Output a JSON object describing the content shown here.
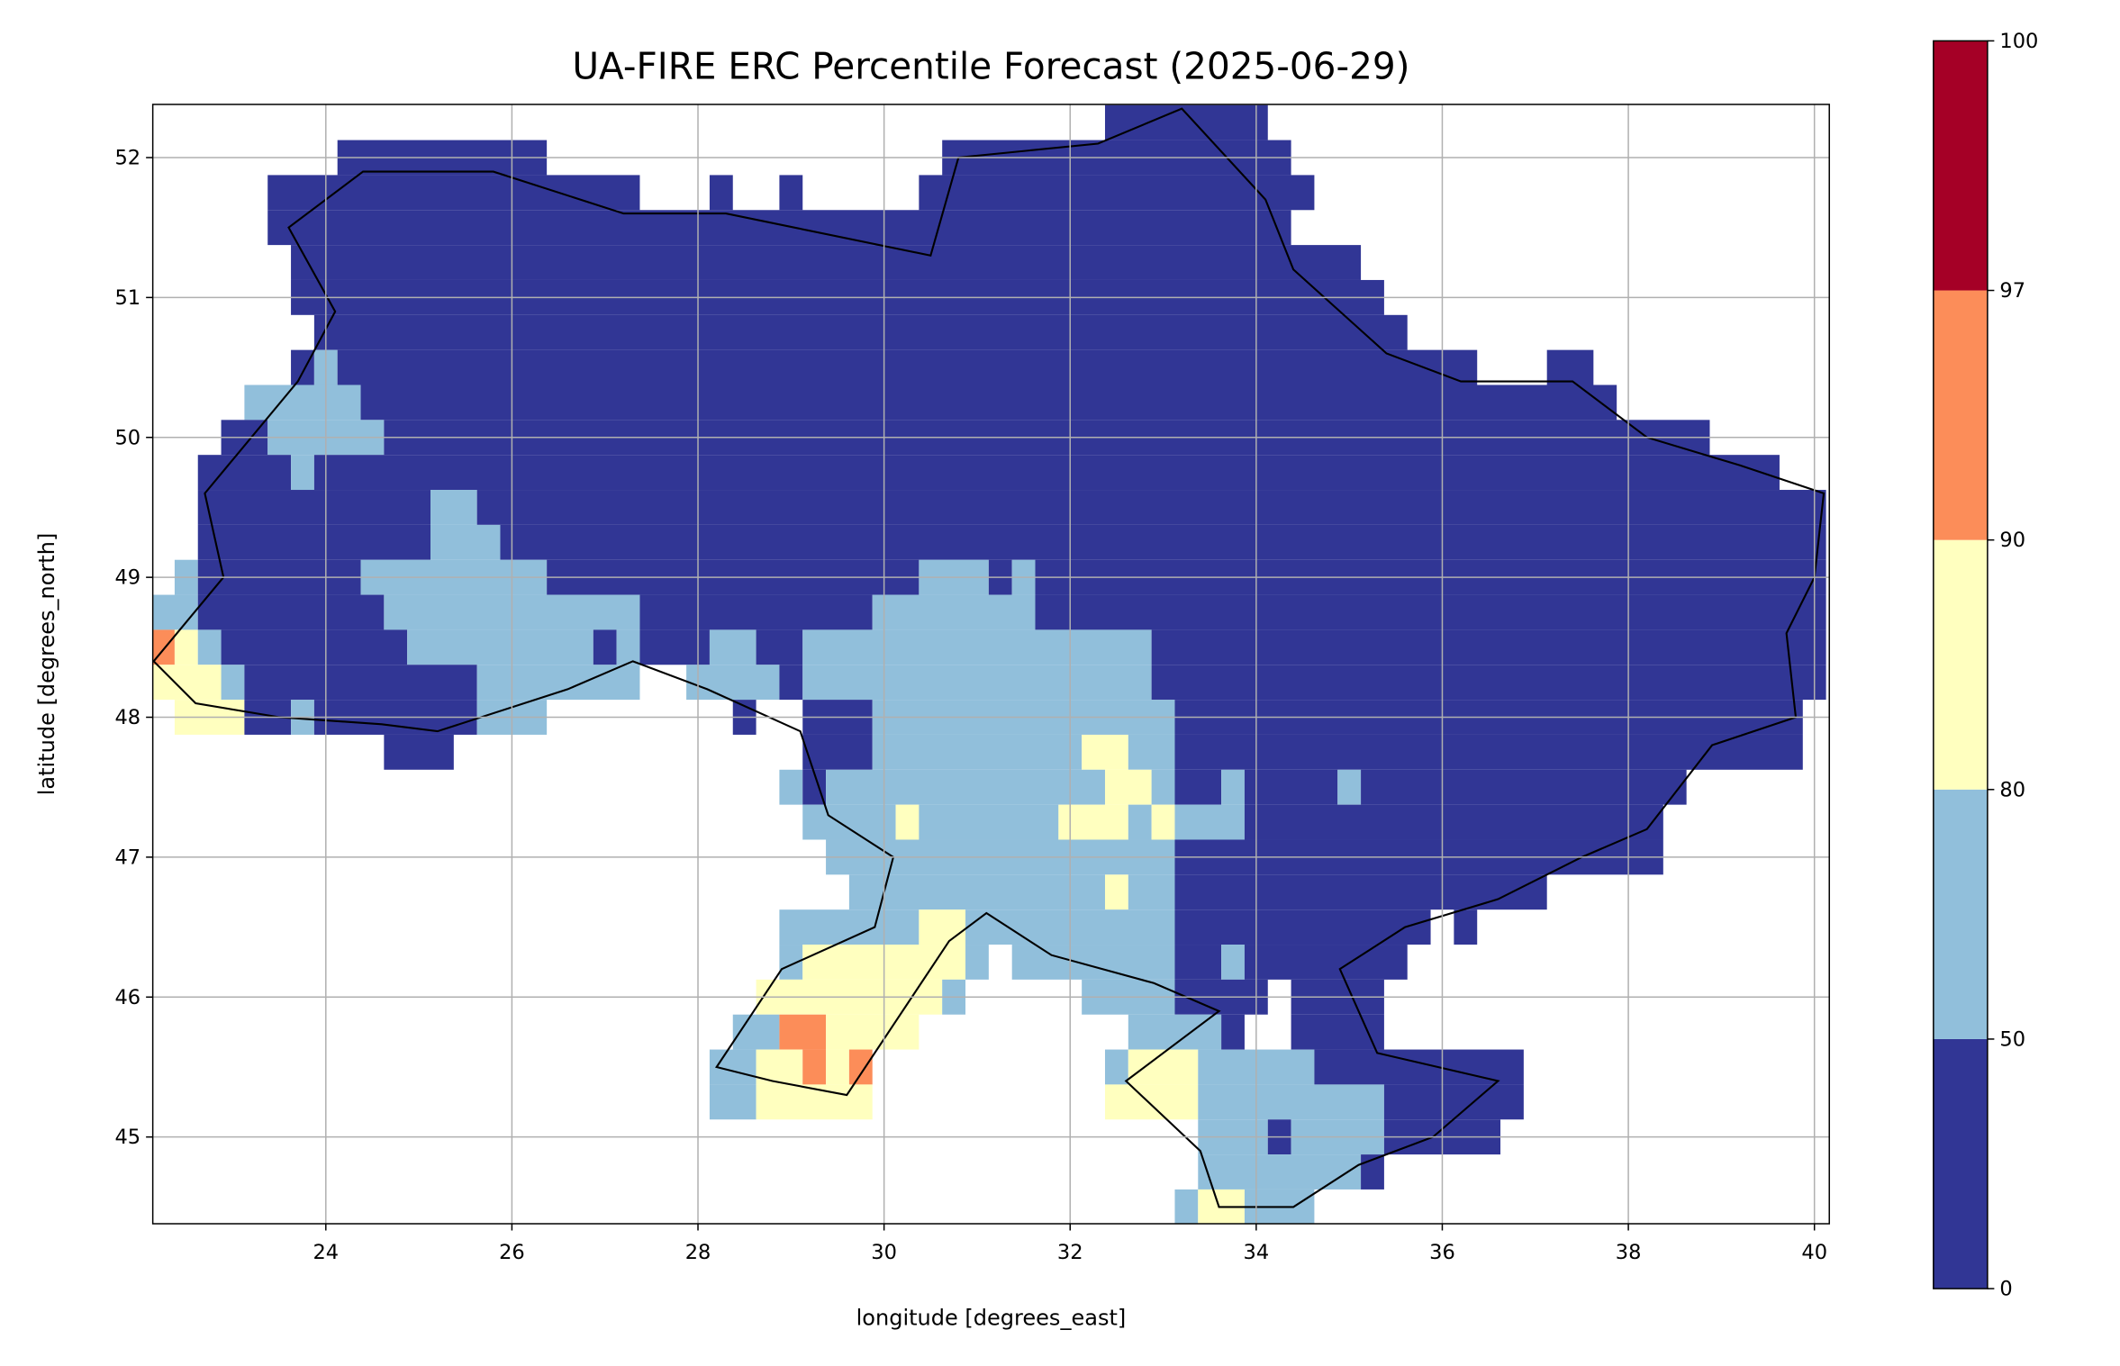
{
  "chart_data": {
    "type": "heatmap",
    "title": "UA-FIRE ERC Percentile Forecast (2025-06-29)",
    "xlabel": "longitude [degrees_east]",
    "ylabel": "latitude [degrees_north]",
    "xlim": [
      22.14,
      40.16
    ],
    "ylim": [
      44.38,
      52.38
    ],
    "xticks": [
      "24",
      "26",
      "28",
      "30",
      "32",
      "34",
      "36",
      "38",
      "40"
    ],
    "yticks": [
      "45",
      "46",
      "47",
      "48",
      "49",
      "50",
      "51",
      "52"
    ],
    "grid": true,
    "cell_size_degrees": 0.25,
    "colorbar": {
      "boundaries": [
        "0",
        "50",
        "80",
        "90",
        "97",
        "100"
      ],
      "colors": [
        "#313695",
        "#91bfdb",
        "#ffffbf",
        "#fc8d59",
        "#a50026"
      ],
      "placement": "right"
    },
    "cell_value_note": "class index: 0 = 0-50, 1 = 50-80, 2 = 80-90, 3 = 90-97, 4 = 97-100",
    "rows": [
      {
        "lat": 52.375,
        "cells": [
          [
            32.375,
            34.125,
            0
          ]
        ]
      },
      {
        "lat": 52.125,
        "cells": [
          [
            24.125,
            26.375,
            0
          ],
          [
            30.625,
            34.375,
            0
          ]
        ]
      },
      {
        "lat": 51.875,
        "cells": [
          [
            23.375,
            27.375,
            0
          ],
          [
            28.125,
            28.375,
            0
          ],
          [
            28.875,
            29.125,
            0
          ],
          [
            30.375,
            34.625,
            0
          ]
        ]
      },
      {
        "lat": 51.625,
        "cells": [
          [
            23.375,
            34.375,
            0
          ]
        ]
      },
      {
        "lat": 51.375,
        "cells": [
          [
            23.625,
            35.125,
            0
          ]
        ]
      },
      {
        "lat": 51.125,
        "cells": [
          [
            23.625,
            35.375,
            0
          ]
        ]
      },
      {
        "lat": 50.875,
        "cells": [
          [
            23.875,
            35.625,
            0
          ]
        ]
      },
      {
        "lat": 50.625,
        "cells": [
          [
            23.625,
            23.875,
            0
          ],
          [
            23.875,
            24.125,
            1
          ],
          [
            24.125,
            36.375,
            0
          ],
          [
            37.125,
            37.625,
            0
          ]
        ]
      },
      {
        "lat": 50.375,
        "cells": [
          [
            23.125,
            24.375,
            1
          ],
          [
            24.375,
            37.875,
            0
          ]
        ]
      },
      {
        "lat": 50.125,
        "cells": [
          [
            22.875,
            23.375,
            0
          ],
          [
            23.375,
            24.625,
            1
          ],
          [
            24.625,
            38.875,
            0
          ]
        ]
      },
      {
        "lat": 49.875,
        "cells": [
          [
            22.625,
            23.625,
            0
          ],
          [
            23.625,
            23.875,
            1
          ],
          [
            23.875,
            39.625,
            0
          ]
        ]
      },
      {
        "lat": 49.625,
        "cells": [
          [
            22.625,
            25.125,
            0
          ],
          [
            25.125,
            25.625,
            1
          ],
          [
            25.625,
            40.125,
            0
          ]
        ]
      },
      {
        "lat": 49.375,
        "cells": [
          [
            22.625,
            25.125,
            0
          ],
          [
            25.125,
            25.875,
            1
          ],
          [
            25.875,
            40.125,
            0
          ]
        ]
      },
      {
        "lat": 49.125,
        "cells": [
          [
            22.375,
            22.625,
            1
          ],
          [
            22.625,
            24.375,
            0
          ],
          [
            24.375,
            26.375,
            1
          ],
          [
            26.375,
            30.375,
            0
          ],
          [
            30.375,
            31.125,
            1
          ],
          [
            31.125,
            31.375,
            0
          ],
          [
            31.375,
            31.625,
            1
          ],
          [
            31.625,
            40.125,
            0
          ]
        ]
      },
      {
        "lat": 48.875,
        "cells": [
          [
            22.125,
            22.625,
            1
          ],
          [
            22.625,
            24.625,
            0
          ],
          [
            24.625,
            27.375,
            1
          ],
          [
            27.375,
            29.875,
            0
          ],
          [
            29.875,
            31.625,
            1
          ],
          [
            31.625,
            40.125,
            0
          ]
        ]
      },
      {
        "lat": 48.625,
        "cells": [
          [
            22.125,
            22.375,
            3
          ],
          [
            22.375,
            22.625,
            2
          ],
          [
            22.625,
            22.875,
            1
          ],
          [
            22.875,
            24.875,
            0
          ],
          [
            24.875,
            26.875,
            1
          ],
          [
            26.875,
            27.125,
            0
          ],
          [
            27.125,
            27.375,
            1
          ],
          [
            27.375,
            28.125,
            0
          ],
          [
            28.125,
            28.625,
            1
          ],
          [
            28.625,
            29.125,
            0
          ],
          [
            29.125,
            32.875,
            1
          ],
          [
            32.875,
            40.125,
            0
          ]
        ]
      },
      {
        "lat": 48.375,
        "cells": [
          [
            22.125,
            22.875,
            2
          ],
          [
            22.875,
            23.125,
            1
          ],
          [
            23.125,
            25.625,
            0
          ],
          [
            25.625,
            27.375,
            1
          ],
          [
            27.875,
            28.875,
            1
          ],
          [
            28.875,
            29.125,
            0
          ],
          [
            29.125,
            32.875,
            1
          ],
          [
            32.875,
            40.125,
            0
          ]
        ]
      },
      {
        "lat": 48.125,
        "cells": [
          [
            22.375,
            23.125,
            2
          ],
          [
            23.125,
            23.625,
            0
          ],
          [
            23.625,
            23.875,
            1
          ],
          [
            23.875,
            25.625,
            0
          ],
          [
            25.625,
            26.375,
            1
          ],
          [
            28.375,
            28.625,
            0
          ],
          [
            29.125,
            29.875,
            0
          ],
          [
            29.875,
            33.125,
            1
          ],
          [
            33.125,
            39.875,
            0
          ]
        ]
      },
      {
        "lat": 47.875,
        "cells": [
          [
            24.625,
            25.375,
            0
          ],
          [
            29.125,
            29.875,
            0
          ],
          [
            29.875,
            32.125,
            1
          ],
          [
            32.125,
            32.625,
            2
          ],
          [
            32.625,
            33.125,
            1
          ],
          [
            33.125,
            39.875,
            0
          ]
        ]
      },
      {
        "lat": 47.625,
        "cells": [
          [
            28.875,
            29.125,
            1
          ],
          [
            29.125,
            29.375,
            0
          ],
          [
            29.375,
            32.375,
            1
          ],
          [
            32.375,
            32.875,
            2
          ],
          [
            32.875,
            33.125,
            1
          ],
          [
            33.125,
            33.625,
            0
          ],
          [
            33.625,
            33.875,
            1
          ],
          [
            33.875,
            34.875,
            0
          ],
          [
            34.875,
            35.125,
            1
          ],
          [
            35.125,
            38.625,
            0
          ]
        ]
      },
      {
        "lat": 47.375,
        "cells": [
          [
            29.125,
            30.125,
            1
          ],
          [
            30.125,
            30.375,
            2
          ],
          [
            30.375,
            31.875,
            1
          ],
          [
            31.875,
            32.625,
            2
          ],
          [
            32.625,
            32.875,
            1
          ],
          [
            32.875,
            33.125,
            2
          ],
          [
            33.125,
            33.875,
            1
          ],
          [
            33.875,
            38.375,
            0
          ]
        ]
      },
      {
        "lat": 47.125,
        "cells": [
          [
            29.375,
            33.125,
            1
          ],
          [
            33.125,
            38.375,
            0
          ]
        ]
      },
      {
        "lat": 46.875,
        "cells": [
          [
            29.625,
            32.375,
            1
          ],
          [
            32.375,
            32.625,
            2
          ],
          [
            32.625,
            33.125,
            1
          ],
          [
            33.125,
            37.125,
            0
          ]
        ]
      },
      {
        "lat": 46.625,
        "cells": [
          [
            28.875,
            30.375,
            1
          ],
          [
            30.375,
            30.875,
            2
          ],
          [
            30.875,
            33.125,
            1
          ],
          [
            33.125,
            35.875,
            0
          ],
          [
            36.125,
            36.375,
            0
          ]
        ]
      },
      {
        "lat": 46.375,
        "cells": [
          [
            28.875,
            29.125,
            1
          ],
          [
            29.125,
            30.875,
            2
          ],
          [
            30.875,
            31.125,
            1
          ],
          [
            31.375,
            33.125,
            1
          ],
          [
            33.125,
            33.625,
            0
          ],
          [
            33.625,
            33.875,
            1
          ],
          [
            33.875,
            35.625,
            0
          ]
        ]
      },
      {
        "lat": 46.125,
        "cells": [
          [
            28.625,
            30.625,
            2
          ],
          [
            30.625,
            30.875,
            1
          ],
          [
            32.125,
            33.125,
            1
          ],
          [
            33.125,
            34.125,
            0
          ],
          [
            34.375,
            35.375,
            0
          ]
        ]
      },
      {
        "lat": 45.875,
        "cells": [
          [
            28.375,
            28.875,
            1
          ],
          [
            28.875,
            29.375,
            3
          ],
          [
            29.375,
            30.375,
            2
          ],
          [
            32.625,
            33.625,
            1
          ],
          [
            33.625,
            33.875,
            0
          ],
          [
            34.375,
            35.375,
            0
          ]
        ]
      },
      {
        "lat": 45.625,
        "cells": [
          [
            28.125,
            28.625,
            1
          ],
          [
            28.625,
            29.125,
            2
          ],
          [
            29.125,
            29.375,
            3
          ],
          [
            29.375,
            29.625,
            2
          ],
          [
            29.625,
            29.875,
            3
          ],
          [
            32.375,
            32.625,
            1
          ],
          [
            32.625,
            33.375,
            2
          ],
          [
            33.375,
            34.625,
            1
          ],
          [
            34.625,
            36.875,
            0
          ]
        ]
      },
      {
        "lat": 45.375,
        "cells": [
          [
            28.125,
            28.625,
            1
          ],
          [
            28.625,
            29.875,
            2
          ],
          [
            32.375,
            33.375,
            2
          ],
          [
            33.375,
            35.375,
            1
          ],
          [
            35.375,
            36.875,
            0
          ]
        ]
      },
      {
        "lat": 45.125,
        "cells": [
          [
            33.375,
            34.125,
            1
          ],
          [
            34.125,
            34.375,
            0
          ],
          [
            34.375,
            35.375,
            1
          ],
          [
            35.375,
            36.625,
            0
          ]
        ]
      },
      {
        "lat": 44.875,
        "cells": [
          [
            33.375,
            35.125,
            1
          ],
          [
            35.125,
            35.375,
            0
          ]
        ]
      },
      {
        "lat": 44.625,
        "cells": [
          [
            33.125,
            33.375,
            1
          ],
          [
            33.375,
            33.875,
            2
          ],
          [
            33.875,
            34.625,
            1
          ]
        ]
      }
    ]
  }
}
